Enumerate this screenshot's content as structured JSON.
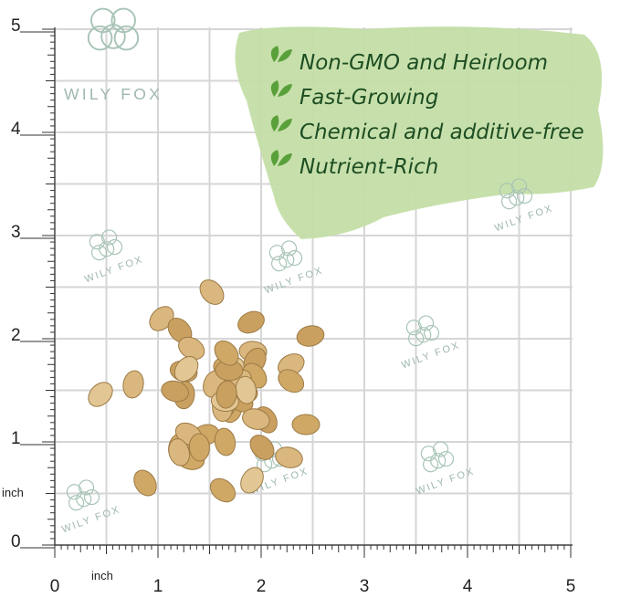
{
  "brand": "WILY FOX",
  "features": [
    "Non-GMO and Heirloom",
    "Fast-Growing",
    "Chemical and additive-free",
    "Nutrient-Rich"
  ],
  "y_axis": {
    "labels": [
      "0",
      "1",
      "2",
      "3",
      "4",
      "5"
    ],
    "unit": "inch"
  },
  "x_axis": {
    "labels": [
      "0",
      "1",
      "2",
      "3",
      "4",
      "5"
    ],
    "unit": "inch"
  }
}
